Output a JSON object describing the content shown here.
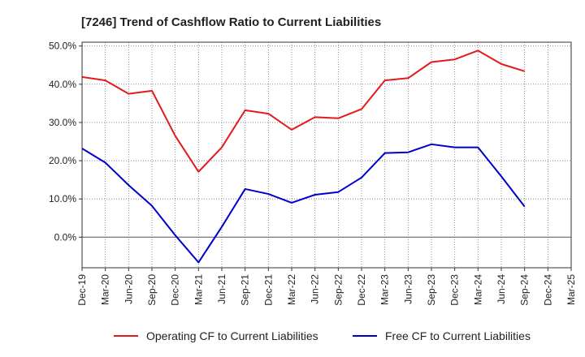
{
  "chart_data": {
    "type": "line",
    "title": "[7246]  Trend of Cashflow Ratio to Current Liabilities",
    "x": [
      "Dec-19",
      "Mar-20",
      "Jun-20",
      "Sep-20",
      "Dec-20",
      "Mar-21",
      "Jun-21",
      "Sep-21",
      "Dec-21",
      "Mar-22",
      "Jun-22",
      "Sep-22",
      "Dec-22",
      "Mar-23",
      "Jun-23",
      "Sep-23",
      "Dec-23",
      "Mar-24",
      "Jun-24",
      "Sep-24",
      "Dec-24",
      "Mar-25"
    ],
    "y_ticks": [
      "50.0%",
      "40.0%",
      "30.0%",
      "20.0%",
      "10.0%",
      "0.0%"
    ],
    "y_tick_values": [
      50,
      40,
      30,
      20,
      10,
      0
    ],
    "ylim": [
      -8,
      51
    ],
    "grid": true,
    "legend_position": "bottom",
    "series": [
      {
        "name": "Operating CF to Current Liabilities",
        "color": "#e31a1c",
        "values": [
          41.9,
          41.0,
          37.5,
          38.3,
          26.5,
          17.1,
          23.5,
          33.2,
          32.3,
          28.1,
          31.4,
          31.1,
          33.5,
          41.0,
          41.6,
          45.8,
          46.5,
          48.8,
          45.3,
          43.4,
          null,
          null
        ]
      },
      {
        "name": "Free CF to Current Liabilities",
        "color": "#0000cc",
        "values": [
          23.2,
          19.5,
          13.6,
          8.2,
          0.5,
          -6.6,
          2.7,
          12.6,
          11.3,
          9.0,
          11.1,
          11.8,
          15.6,
          22.0,
          22.2,
          24.3,
          23.5,
          23.5,
          15.9,
          8.0,
          null,
          null
        ]
      }
    ]
  }
}
